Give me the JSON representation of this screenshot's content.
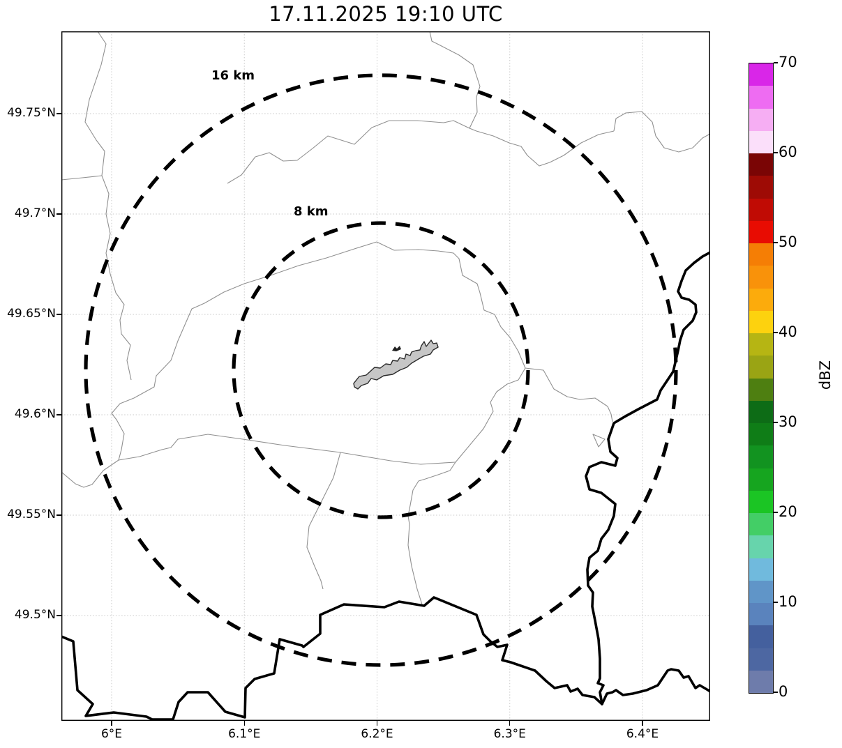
{
  "title": "17.11.2025 19:10 UTC",
  "map": {
    "x_axis": {
      "ticks": [
        {
          "lon": 6.0,
          "label": "6°E"
        },
        {
          "lon": 6.1,
          "label": "6.1°E"
        },
        {
          "lon": 6.2,
          "label": "6.2°E"
        },
        {
          "lon": 6.3,
          "label": "6.3°E"
        },
        {
          "lon": 6.4,
          "label": "6.4°E"
        }
      ]
    },
    "y_axis": {
      "ticks": [
        {
          "lat": 49.75,
          "label": "49.75°N"
        },
        {
          "lat": 49.7,
          "label": "49.7°N"
        },
        {
          "lat": 49.65,
          "label": "49.65°N"
        },
        {
          "lat": 49.6,
          "label": "49.6°N"
        },
        {
          "lat": 49.55,
          "label": "49.55°N"
        },
        {
          "lat": 49.5,
          "label": "49.5°N"
        }
      ]
    },
    "range_rings": [
      {
        "radius_km": 16,
        "label": "16 km"
      },
      {
        "radius_km": 8,
        "label": "8 km"
      }
    ],
    "features": {
      "center_site": "airport-outline-polygon",
      "boundary_styles": [
        "thin-gray-admin-boundaries",
        "thick-black-country-borders"
      ]
    }
  },
  "colorbar": {
    "label": "dBZ",
    "min": 0,
    "max": 70,
    "band_step": 2.5,
    "ticks": [
      0,
      10,
      20,
      30,
      40,
      50,
      60,
      70
    ],
    "colors_bottom_to_top": [
      "#6e7cab",
      "#4d67a2",
      "#44609e",
      "#5a83bd",
      "#6095c8",
      "#70badd",
      "#67d4ac",
      "#43ce66",
      "#1bc524",
      "#16a51f",
      "#129320",
      "#0f7d17",
      "#0d6c16",
      "#4e7f11",
      "#9aa414",
      "#b6b513",
      "#fdd20e",
      "#fcab0c",
      "#f9920a",
      "#f57e05",
      "#e80c02",
      "#c00b04",
      "#9e0b05",
      "#7a0505",
      "#fbdffa",
      "#f6aef3",
      "#ee6cf2",
      "#d926e8"
    ]
  },
  "colors": {
    "grid": "#c8c8c8",
    "admin_lines": "#909090",
    "country_border": "#000000",
    "range_ring": "#000000",
    "airport_fill": "#c6c6c6",
    "airport_stroke": "#2b2b2b"
  }
}
